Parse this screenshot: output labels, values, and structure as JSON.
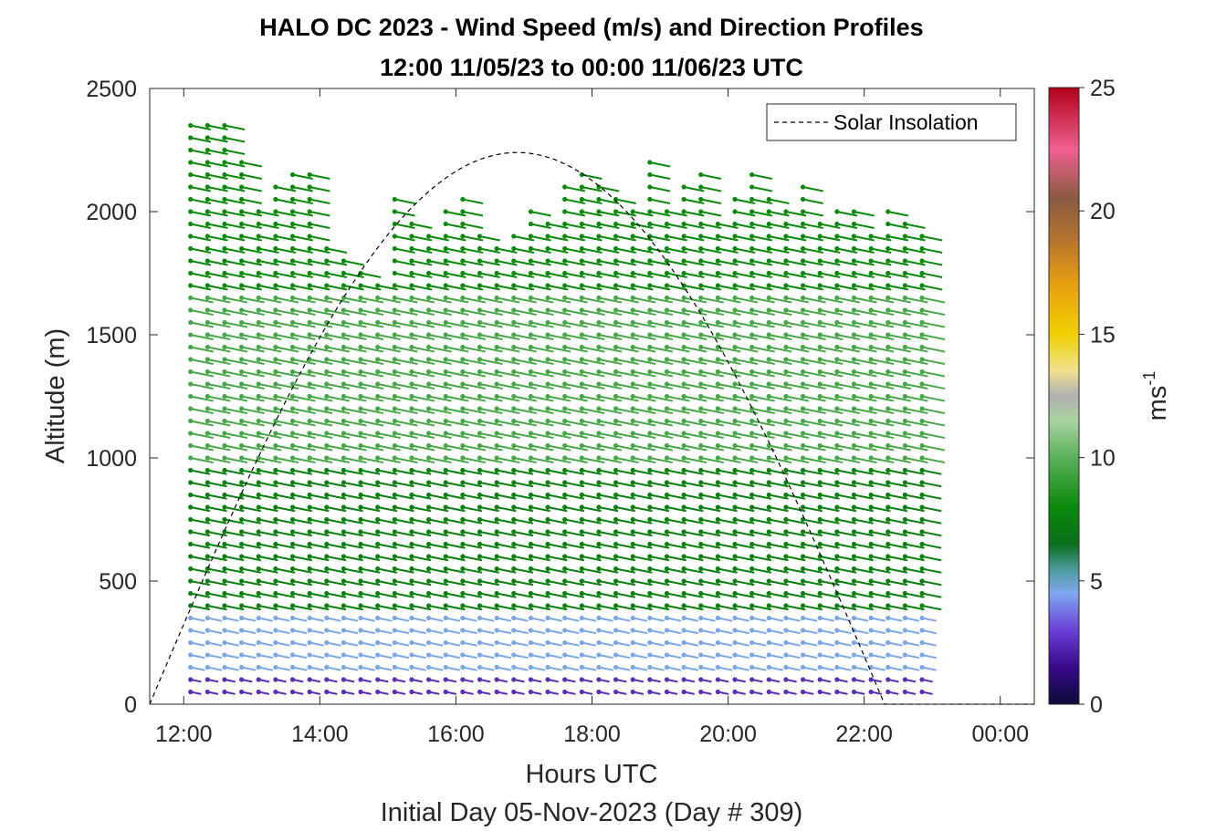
{
  "chart_data": {
    "type": "wind-barb-profile",
    "title_line1": "HALO DC 2023 - Wind Speed (m/s) and Direction Profiles",
    "title_line2": "12:00 11/05/23 to 00:00 11/06/23  UTC",
    "xlabel": "Hours UTC",
    "subtitle": "Initial Day 05-Nov-2023 (Day # 309)",
    "ylabel": "Altitude (m)",
    "xlim_hours": [
      11.5,
      24.5
    ],
    "ylim": [
      0,
      2500
    ],
    "x_ticks": [
      {
        "hour": 12,
        "label": "12:00"
      },
      {
        "hour": 14,
        "label": "14:00"
      },
      {
        "hour": 16,
        "label": "16:00"
      },
      {
        "hour": 18,
        "label": "18:00"
      },
      {
        "hour": 20,
        "label": "20:00"
      },
      {
        "hour": 22,
        "label": "22:00"
      },
      {
        "hour": 24,
        "label": "00:00"
      }
    ],
    "y_ticks": [
      0,
      500,
      1000,
      1500,
      2000,
      2500
    ],
    "colorbar": {
      "label_base": "ms",
      "label_exp": "-1",
      "range": [
        0,
        25
      ],
      "ticks": [
        0,
        5,
        10,
        15,
        20,
        25
      ],
      "stops": [
        {
          "v": 0,
          "c": "#0b0b3a"
        },
        {
          "v": 1.5,
          "c": "#3a0a8a"
        },
        {
          "v": 3,
          "c": "#6a3fd6"
        },
        {
          "v": 4.5,
          "c": "#7fa8f0"
        },
        {
          "v": 5.5,
          "c": "#4a9a9a"
        },
        {
          "v": 6.5,
          "c": "#0a6e1a"
        },
        {
          "v": 8,
          "c": "#0a8a0a"
        },
        {
          "v": 10,
          "c": "#5ab05a"
        },
        {
          "v": 11.5,
          "c": "#a8d4a0"
        },
        {
          "v": 12.5,
          "c": "#b0b0b0"
        },
        {
          "v": 13.5,
          "c": "#f0e090"
        },
        {
          "v": 15,
          "c": "#f0d000"
        },
        {
          "v": 17,
          "c": "#e8a010"
        },
        {
          "v": 19,
          "c": "#b07030"
        },
        {
          "v": 20.5,
          "c": "#8a5a40"
        },
        {
          "v": 22.5,
          "c": "#f06090"
        },
        {
          "v": 25,
          "c": "#b00018"
        }
      ]
    },
    "legend": {
      "label": "Solar Insolation",
      "position": "top-right",
      "style": "dashed"
    },
    "solar_insolation": {
      "rise_hour": 11.5,
      "peak_hour": 16.9,
      "peak_altitude": 2240,
      "set_hour": 22.3
    },
    "profiles": {
      "start_hour": 12.1,
      "step_hour": 0.25,
      "count": 44,
      "altitude_step_m": 50,
      "min_altitude_m": 50,
      "max_altitude_m_by_profile": [
        2350,
        2350,
        2350,
        2200,
        2000,
        2100,
        2150,
        2150,
        1850,
        1800,
        1750,
        1700,
        2050,
        1950,
        1900,
        2000,
        2050,
        1900,
        1880,
        1900,
        2000,
        1980,
        2100,
        2150,
        2100,
        2050,
        2000,
        2200,
        2000,
        2100,
        2150,
        1950,
        2050,
        2150,
        2050,
        2000,
        2100,
        1950,
        2000,
        2000,
        1900,
        2000,
        1950,
        1900
      ],
      "wind_speed_bands_m_s": [
        {
          "from_m": 0,
          "to_m": 150,
          "speed": 2.5
        },
        {
          "from_m": 150,
          "to_m": 400,
          "speed": 4.6
        },
        {
          "from_m": 400,
          "to_m": 1000,
          "speed": 7.5
        },
        {
          "from_m": 1000,
          "to_m": 1700,
          "speed": 9.5
        },
        {
          "from_m": 1700,
          "to_m": 2500,
          "speed": 8.0
        }
      ],
      "wind_direction_deg": 300
    }
  }
}
